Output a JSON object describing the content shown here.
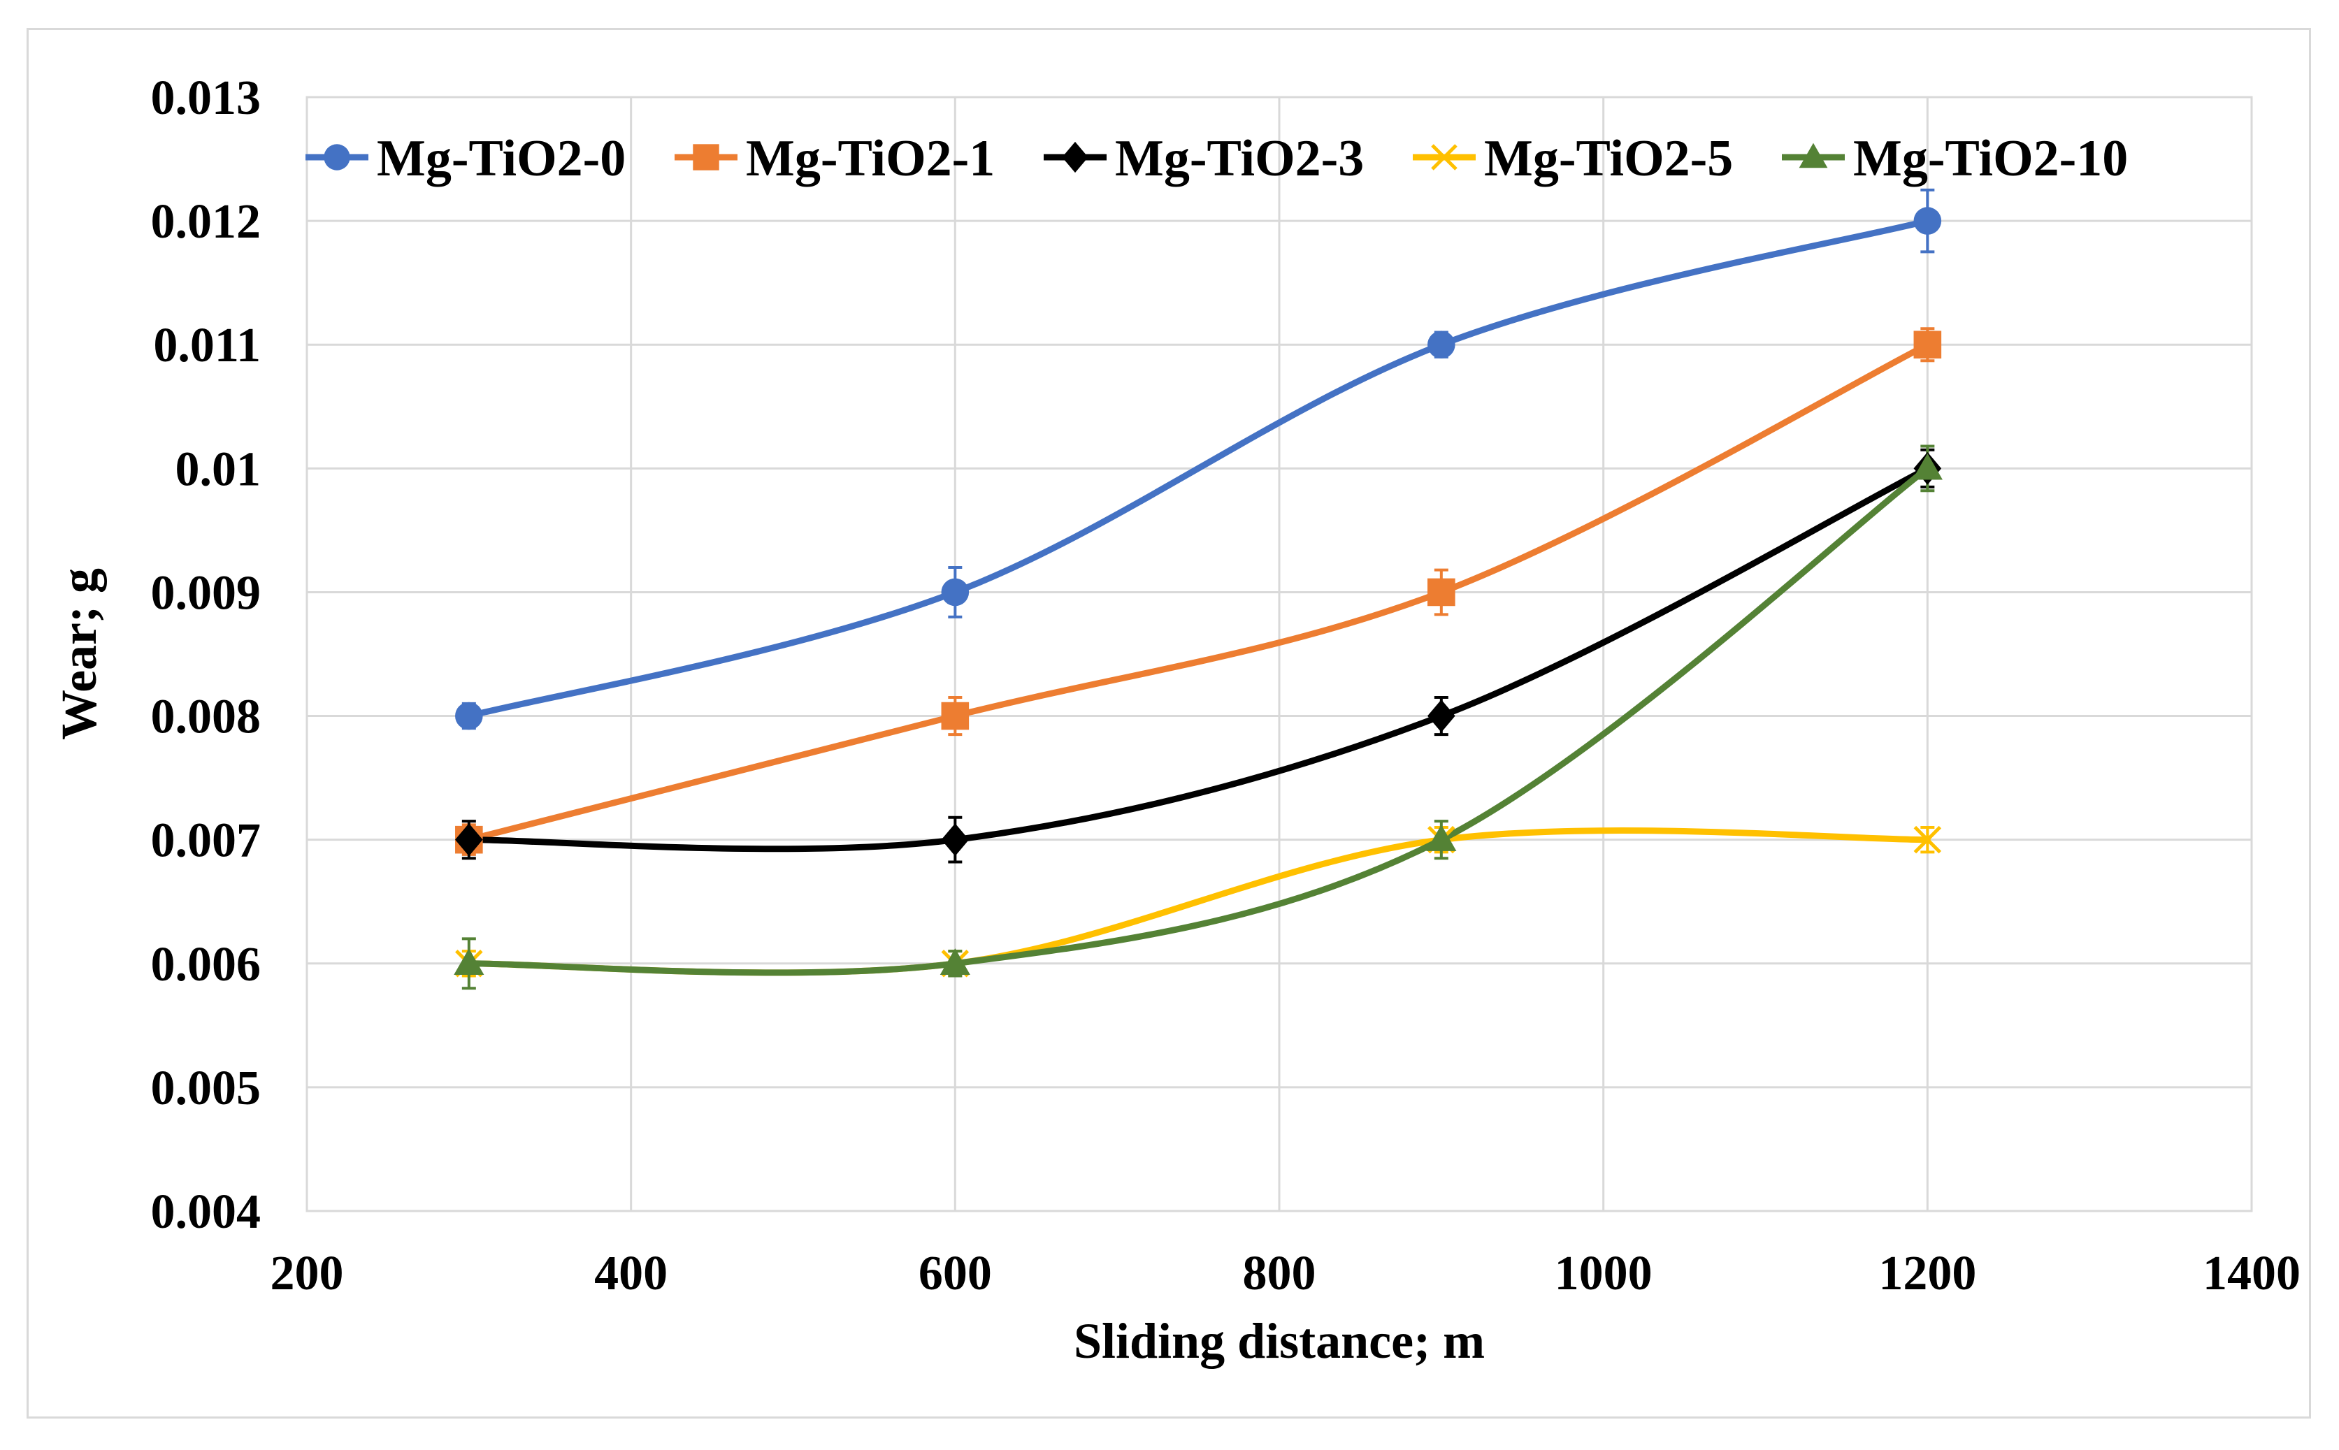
{
  "chart_data": {
    "type": "line",
    "title": "",
    "xlabel": "Sliding distance; m",
    "ylabel": "Wear; g",
    "xlim": [
      200,
      1400
    ],
    "ylim": [
      0.004,
      0.013
    ],
    "x_ticks": [
      200,
      400,
      600,
      800,
      1000,
      1200,
      1400
    ],
    "x_tick_labels": [
      "200",
      "400",
      "600",
      "800",
      "1000",
      "1200",
      "1400"
    ],
    "y_ticks": [
      0.004,
      0.005,
      0.006,
      0.007,
      0.008,
      0.009,
      0.01,
      0.011,
      0.012,
      0.013
    ],
    "y_tick_labels": [
      "0.004",
      "0.005",
      "0.006",
      "0.007",
      "0.008",
      "0.009",
      "0.01",
      "0.011",
      "0.012",
      "0.013"
    ],
    "grid": true,
    "smooth": true,
    "legend_position": "top",
    "x": [
      300,
      600,
      900,
      1200
    ],
    "series": [
      {
        "name": "Mg-TiO2-0",
        "color": "#4472C4",
        "marker": "circle",
        "values": [
          0.008,
          0.009,
          0.011,
          0.012
        ],
        "errors": [
          0.0001,
          0.0002,
          0.0001,
          0.00025
        ]
      },
      {
        "name": "Mg-TiO2-1",
        "color": "#ED7D31",
        "marker": "square",
        "values": [
          0.007,
          0.008,
          0.009,
          0.011
        ],
        "errors": [
          0.00012,
          0.00015,
          0.00018,
          0.00013
        ]
      },
      {
        "name": "Mg-TiO2-3",
        "color": "#000000",
        "marker": "diamond",
        "values": [
          0.007,
          0.007,
          0.008,
          0.01
        ],
        "errors": [
          0.00015,
          0.00018,
          0.00015,
          0.00015
        ]
      },
      {
        "name": "Mg-TiO2-5",
        "color": "#FFC000",
        "marker": "x",
        "values": [
          0.006,
          0.006,
          0.007,
          0.007
        ],
        "errors": [
          0.0001,
          0.0001,
          0.0001,
          0.0001
        ]
      },
      {
        "name": "Mg-TiO2-10",
        "color": "#548235",
        "marker": "triangle",
        "values": [
          0.006,
          0.006,
          0.007,
          0.01
        ],
        "errors": [
          0.0002,
          0.0001,
          0.00015,
          0.00018
        ]
      }
    ]
  }
}
